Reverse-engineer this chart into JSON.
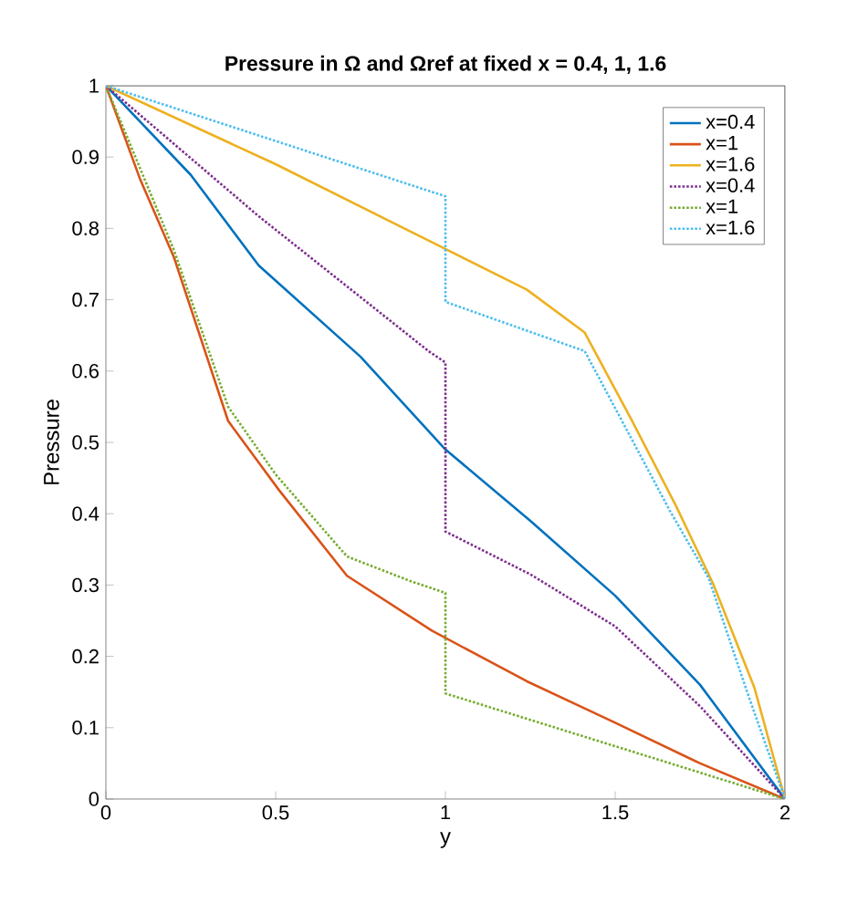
{
  "chart_data": {
    "type": "line",
    "title": "Pressure in Ω and Ωref at fixed x = 0.4, 1, 1.6",
    "xlabel": "y",
    "ylabel": "Pressure",
    "xlim": [
      0,
      2
    ],
    "ylim": [
      0,
      1
    ],
    "xticks": [
      0,
      0.5,
      1,
      1.5,
      2
    ],
    "yticks": [
      0,
      0.1,
      0.2,
      0.3,
      0.4,
      0.5,
      0.6,
      0.7,
      0.8,
      0.9,
      1
    ],
    "grid": false,
    "legend": "top right",
    "marker": "none",
    "series": [
      {
        "name": "x=0.4",
        "color": "#0072bd",
        "line_style": "solid",
        "x": [
          0,
          0.25,
          0.45,
          0.75,
          1,
          1.25,
          1.5,
          1.75,
          2
        ],
        "values": [
          1,
          0.875,
          0.748,
          0.62,
          0.49,
          0.39,
          0.285,
          0.16,
          0
        ]
      },
      {
        "name": "x=1",
        "color": "#d95319",
        "line_style": "solid",
        "x": [
          0,
          0.1,
          0.2,
          0.36,
          0.51,
          0.71,
          0.96,
          1.24,
          1.5,
          1.75,
          2
        ],
        "values": [
          1,
          0.87,
          0.76,
          0.53,
          0.433,
          0.313,
          0.236,
          0.165,
          0.107,
          0.05,
          0
        ]
      },
      {
        "name": "x=1.6",
        "color": "#edb120",
        "line_style": "solid",
        "x": [
          0,
          0.5,
          0.95,
          1.24,
          1.41,
          1.55,
          1.68,
          1.79,
          1.91,
          2
        ],
        "values": [
          1,
          0.89,
          0.783,
          0.714,
          0.654,
          0.53,
          0.41,
          0.3,
          0.156,
          0
        ]
      },
      {
        "name": "x=0.4",
        "color": "#7e2f8e",
        "line_style": "dotted",
        "x": [
          0,
          0.45,
          0.95,
          1,
          1,
          1.25,
          1.5,
          1.75,
          2
        ],
        "values": [
          1,
          0.817,
          0.628,
          0.612,
          0.375,
          0.315,
          0.242,
          0.13,
          0
        ]
      },
      {
        "name": "x=1",
        "color": "#77ac30",
        "line_style": "dotted",
        "x": [
          0,
          0.2,
          0.36,
          0.5,
          0.71,
          0.9,
          1,
          1,
          2
        ],
        "values": [
          1,
          0.77,
          0.55,
          0.455,
          0.34,
          0.305,
          0.289,
          0.148,
          0
        ]
      },
      {
        "name": "x=1.6",
        "color": "#4dbeee",
        "line_style": "dotted",
        "x": [
          0,
          1,
          1,
          1.41,
          1.52,
          1.66,
          1.775,
          1.89,
          2
        ],
        "values": [
          1,
          0.845,
          0.697,
          0.628,
          0.53,
          0.405,
          0.31,
          0.148,
          0
        ]
      }
    ]
  }
}
